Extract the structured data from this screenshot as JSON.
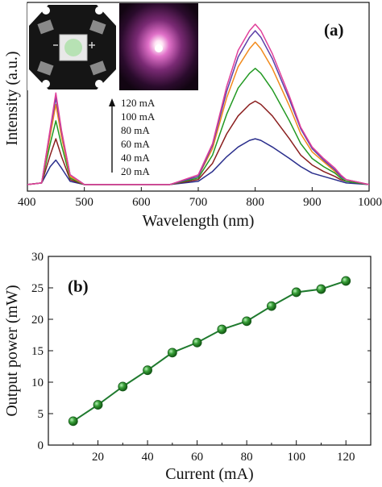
{
  "chart_data": [
    {
      "panel_label": "(a)",
      "type": "line",
      "xlabel": "Wavelength (nm)",
      "ylabel": "Intensity (a.u.)",
      "xlim": [
        400,
        1000
      ],
      "x_ticks": [
        "400",
        "500",
        "600",
        "700",
        "800",
        "900",
        "1000"
      ],
      "y_ticks_labeled": false,
      "legend_arrow": true,
      "legend_placement": "left-middle",
      "inset_images": [
        "led-package-photo",
        "pink-emission-glow-photo"
      ],
      "x": [
        400,
        425,
        440,
        450,
        460,
        475,
        500,
        550,
        600,
        650,
        700,
        725,
        750,
        770,
        790,
        800,
        810,
        830,
        860,
        880,
        900,
        920,
        940,
        950,
        960,
        1000
      ],
      "series": [
        {
          "name": "20 mA",
          "color": "#2a2e8c",
          "values": [
            0.02,
            0.03,
            0.13,
            0.17,
            0.12,
            0.04,
            0.02,
            0.02,
            0.02,
            0.02,
            0.04,
            0.1,
            0.19,
            0.25,
            0.29,
            0.3,
            0.29,
            0.25,
            0.18,
            0.13,
            0.09,
            0.07,
            0.05,
            0.04,
            0.03,
            0.02
          ]
        },
        {
          "name": "40 mA",
          "color": "#8b1f1f",
          "values": [
            0.02,
            0.03,
            0.2,
            0.3,
            0.19,
            0.05,
            0.02,
            0.02,
            0.02,
            0.02,
            0.05,
            0.15,
            0.33,
            0.44,
            0.51,
            0.53,
            0.51,
            0.44,
            0.3,
            0.2,
            0.14,
            0.1,
            0.07,
            0.05,
            0.04,
            0.02
          ]
        },
        {
          "name": "60 mA",
          "color": "#229922",
          "values": [
            0.02,
            0.03,
            0.27,
            0.41,
            0.26,
            0.06,
            0.02,
            0.02,
            0.02,
            0.02,
            0.06,
            0.2,
            0.45,
            0.61,
            0.7,
            0.73,
            0.7,
            0.6,
            0.41,
            0.27,
            0.18,
            0.13,
            0.09,
            0.06,
            0.04,
            0.02
          ]
        },
        {
          "name": "80 mA",
          "color": "#f28a1c",
          "values": [
            0.02,
            0.03,
            0.32,
            0.51,
            0.31,
            0.07,
            0.02,
            0.02,
            0.02,
            0.02,
            0.07,
            0.24,
            0.55,
            0.74,
            0.85,
            0.89,
            0.85,
            0.73,
            0.5,
            0.33,
            0.22,
            0.16,
            0.1,
            0.07,
            0.05,
            0.02
          ]
        },
        {
          "name": "100 mA",
          "color": "#5c3fa8",
          "values": [
            0.02,
            0.03,
            0.35,
            0.55,
            0.34,
            0.08,
            0.02,
            0.02,
            0.02,
            0.02,
            0.07,
            0.26,
            0.59,
            0.8,
            0.92,
            0.96,
            0.92,
            0.79,
            0.54,
            0.36,
            0.24,
            0.17,
            0.11,
            0.07,
            0.05,
            0.02
          ]
        },
        {
          "name": "120 mA",
          "color": "#e0409a",
          "values": [
            0.02,
            0.03,
            0.36,
            0.58,
            0.35,
            0.08,
            0.02,
            0.02,
            0.02,
            0.02,
            0.08,
            0.27,
            0.62,
            0.84,
            0.96,
            1.0,
            0.96,
            0.82,
            0.56,
            0.37,
            0.25,
            0.18,
            0.12,
            0.08,
            0.05,
            0.02
          ]
        }
      ]
    },
    {
      "panel_label": "(b)",
      "type": "line",
      "markers": true,
      "xlabel": "Current (mA)",
      "ylabel": "Output power (mW)",
      "xlim": [
        0,
        130
      ],
      "ylim": [
        0,
        30
      ],
      "x_ticks": [
        "20",
        "40",
        "60",
        "80",
        "100",
        "120"
      ],
      "y_ticks": [
        "0",
        "5",
        "10",
        "15",
        "20",
        "25",
        "30"
      ],
      "color": "#1f7a2e",
      "x": [
        10,
        20,
        30,
        40,
        50,
        60,
        70,
        80,
        90,
        100,
        110,
        120
      ],
      "values": [
        3.8,
        6.4,
        9.3,
        11.9,
        14.7,
        16.3,
        18.4,
        19.7,
        22.1,
        24.3,
        24.8,
        26.1
      ]
    }
  ]
}
